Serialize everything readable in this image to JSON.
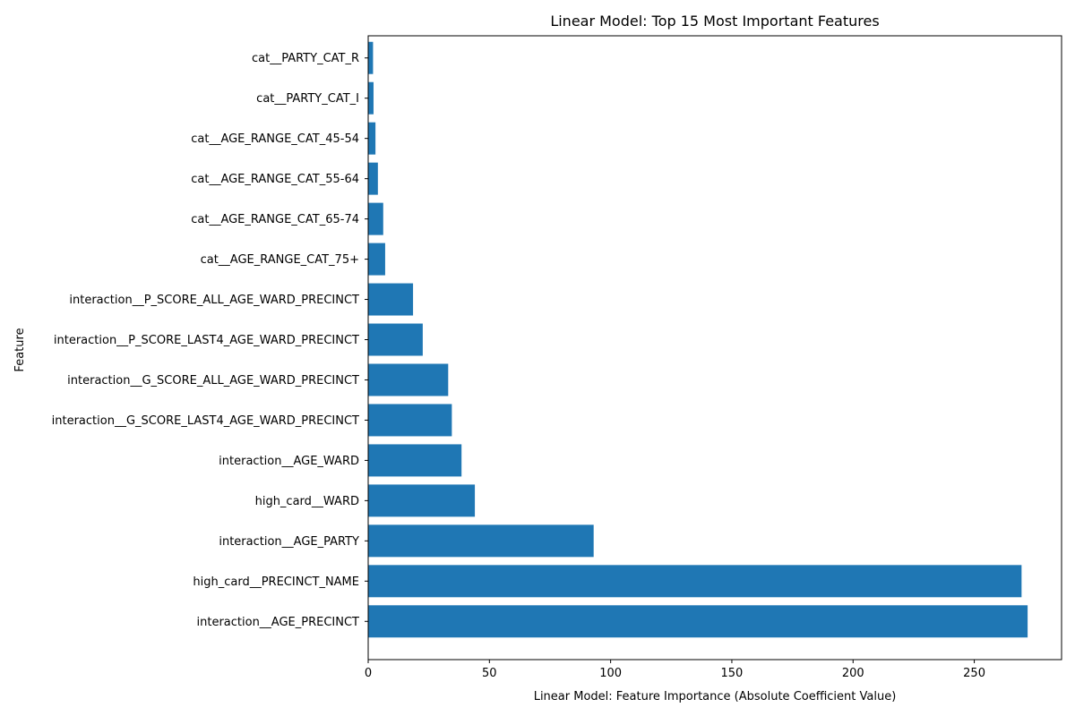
{
  "chart_data": {
    "type": "bar",
    "orientation": "horizontal",
    "title": "Linear Model: Top 15 Most Important Features",
    "xlabel": "Linear Model: Feature Importance (Absolute Coefficient Value)",
    "ylabel": "Feature",
    "xlim": [
      0,
      286
    ],
    "xticks": [
      0,
      50,
      100,
      150,
      200,
      250
    ],
    "grid": false,
    "bar_color": "#1f77b4",
    "categories": [
      "interaction__AGE_PRECINCT",
      "high_card__PRECINCT_NAME",
      "interaction__AGE_PARTY",
      "high_card__WARD",
      "interaction__AGE_WARD",
      "interaction__G_SCORE_LAST4_AGE_WARD_PRECINCT",
      "interaction__G_SCORE_ALL_AGE_WARD_PRECINCT",
      "interaction__P_SCORE_LAST4_AGE_WARD_PRECINCT",
      "interaction__P_SCORE_ALL_AGE_WARD_PRECINCT",
      "cat__AGE_RANGE_CAT_75+",
      "cat__AGE_RANGE_CAT_65-74",
      "cat__AGE_RANGE_CAT_55-64",
      "cat__AGE_RANGE_CAT_45-54",
      "cat__PARTY_CAT_I",
      "cat__PARTY_CAT_R"
    ],
    "values": [
      272,
      269.5,
      93,
      44,
      38.5,
      34.5,
      33,
      22.5,
      18.5,
      7,
      6.2,
      4,
      3,
      2.2,
      2
    ]
  }
}
